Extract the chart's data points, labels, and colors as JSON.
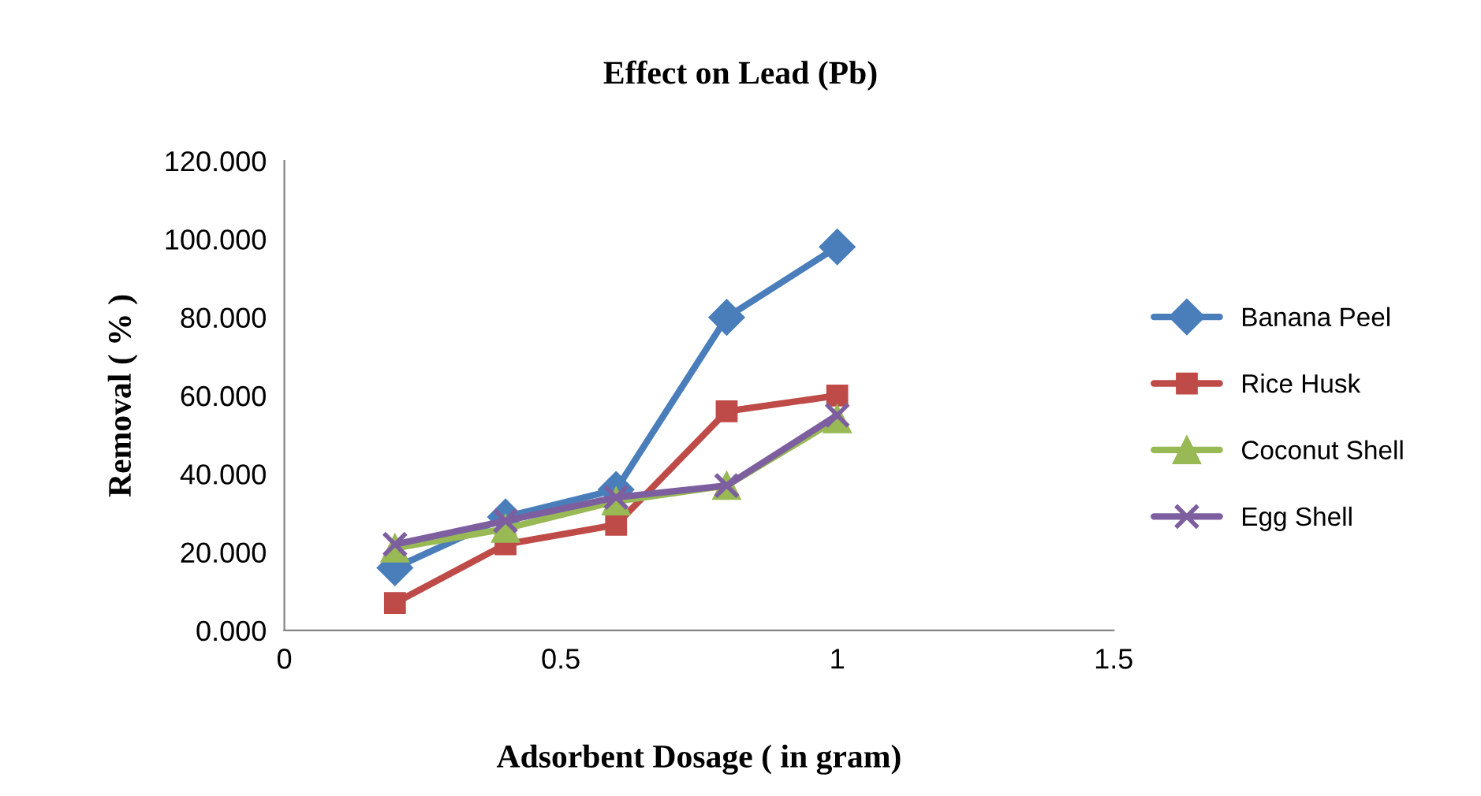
{
  "chart_data": {
    "type": "line",
    "title": "Effect on Lead (Pb)",
    "xlabel": "Adsorbent Dosage ( in gram)",
    "ylabel": "Removal ( % )",
    "x": [
      0.2,
      0.4,
      0.6,
      0.8,
      1.0
    ],
    "series": [
      {
        "name": "Banana Peel",
        "color": "#4a7ebb",
        "marker": "diamond",
        "values": [
          16,
          29,
          36,
          80,
          98
        ]
      },
      {
        "name": "Rice Husk",
        "color": "#be4b48",
        "marker": "square",
        "values": [
          7,
          22,
          27,
          56,
          60
        ]
      },
      {
        "name": "Coconut Shell",
        "color": "#98b954",
        "marker": "triangle",
        "values": [
          21,
          26,
          33,
          37,
          54
        ]
      },
      {
        "name": "Egg Shell",
        "color": "#7d5fa0",
        "marker": "cross",
        "values": [
          22,
          28,
          34,
          37,
          55
        ]
      }
    ],
    "xlim": [
      0,
      1.5
    ],
    "xticks": [
      0,
      0.5,
      1,
      1.5
    ],
    "ylim": [
      0,
      120
    ],
    "yticks": [
      {
        "value": 0,
        "label": "0.000"
      },
      {
        "value": 20,
        "label": "20.000"
      },
      {
        "value": 40,
        "label": "40.000"
      },
      {
        "value": 60,
        "label": "60.000"
      },
      {
        "value": 80,
        "label": "80.000"
      },
      {
        "value": 100,
        "label": "100.000"
      },
      {
        "value": 120,
        "label": "120.000"
      }
    ],
    "grid": false,
    "legend": "right",
    "line_style": "solid"
  }
}
